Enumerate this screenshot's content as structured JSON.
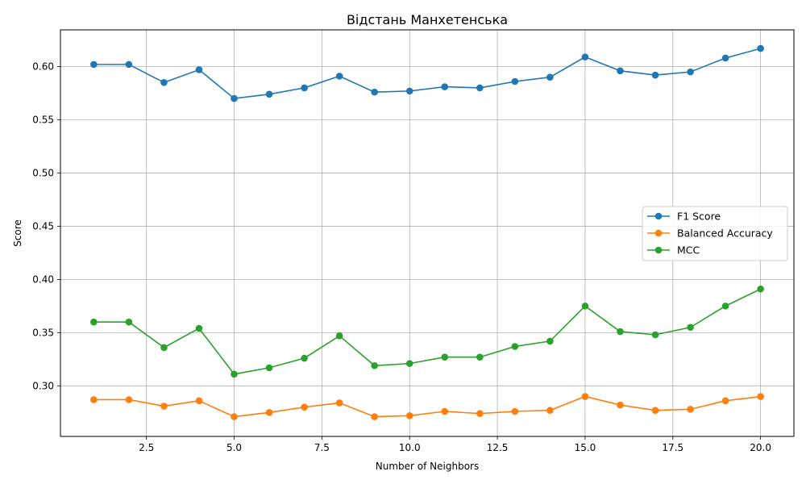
{
  "chart_data": {
    "type": "line",
    "title": "Відстань Манхетенська",
    "xlabel": "Number of Neighbors",
    "ylabel": "Score",
    "xlim": [
      0.05,
      20.95
    ],
    "ylim": [
      0.2525,
      0.6345
    ],
    "xticks": [
      2.5,
      5.0,
      7.5,
      10.0,
      12.5,
      15.0,
      17.5,
      20.0
    ],
    "xtick_labels": [
      "2.5",
      "5.0",
      "7.5",
      "10.0",
      "12.5",
      "15.0",
      "17.5",
      "20.0"
    ],
    "yticks": [
      0.3,
      0.35,
      0.4,
      0.45,
      0.5,
      0.55,
      0.6
    ],
    "ytick_labels": [
      "0.30",
      "0.35",
      "0.40",
      "0.45",
      "0.50",
      "0.55",
      "0.60"
    ],
    "grid": true,
    "legend_position": "center-right",
    "x": [
      1,
      2,
      3,
      4,
      5,
      6,
      7,
      8,
      9,
      10,
      11,
      12,
      13,
      14,
      15,
      16,
      17,
      18,
      19,
      20
    ],
    "series": [
      {
        "name": "F1 Score",
        "color": "#1f77b4",
        "values": [
          0.602,
          0.602,
          0.585,
          0.597,
          0.57,
          0.574,
          0.58,
          0.591,
          0.576,
          0.577,
          0.581,
          0.58,
          0.586,
          0.59,
          0.609,
          0.596,
          0.592,
          0.595,
          0.608,
          0.617
        ]
      },
      {
        "name": "Balanced Accuracy",
        "color": "#ff7f0e",
        "values": [
          0.287,
          0.287,
          0.281,
          0.286,
          0.271,
          0.275,
          0.28,
          0.284,
          0.271,
          0.272,
          0.276,
          0.274,
          0.276,
          0.277,
          0.29,
          0.282,
          0.277,
          0.278,
          0.286,
          0.29
        ]
      },
      {
        "name": "MCC",
        "color": "#2ca02c",
        "values": [
          0.36,
          0.36,
          0.336,
          0.354,
          0.311,
          0.317,
          0.326,
          0.347,
          0.319,
          0.321,
          0.327,
          0.327,
          0.337,
          0.342,
          0.375,
          0.351,
          0.348,
          0.355,
          0.375,
          0.391
        ]
      }
    ]
  }
}
